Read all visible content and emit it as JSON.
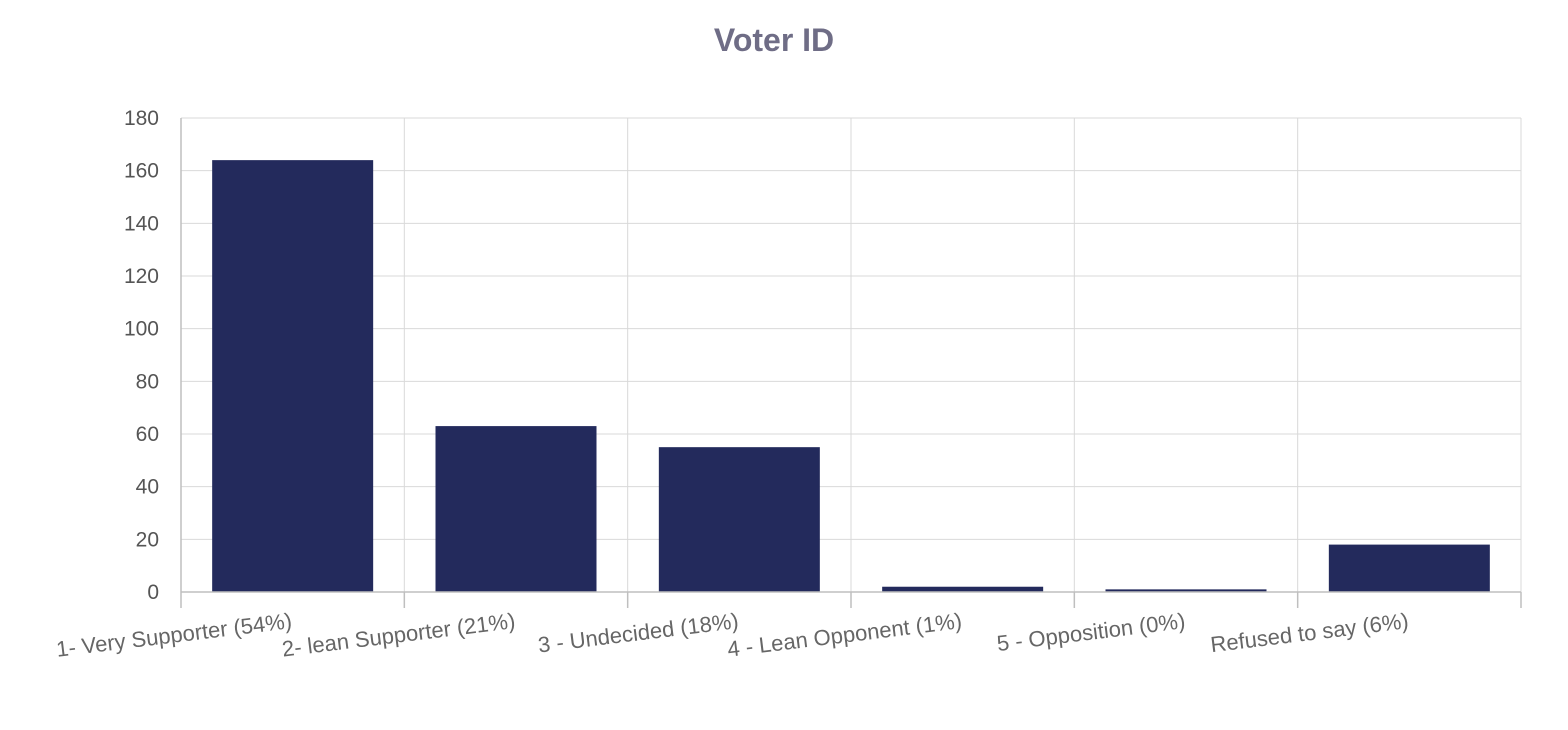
{
  "chart_data": {
    "type": "bar",
    "title": "Voter ID",
    "categories": [
      "1- Very Supporter (54%)",
      "2- lean Supporter  (21%)",
      "3 - Undecided  (18%)",
      "4 - Lean Opponent  (1%)",
      "5 - Opposition  (0%)",
      "Refused to say  (6%)"
    ],
    "values": [
      164,
      63,
      55,
      2,
      1,
      18
    ],
    "ylim": [
      0,
      180
    ],
    "yticks": [
      0,
      20,
      40,
      60,
      80,
      100,
      120,
      140,
      160,
      180
    ],
    "grid": true,
    "bar_color": "#232a5c",
    "xlabel": "",
    "ylabel": ""
  }
}
